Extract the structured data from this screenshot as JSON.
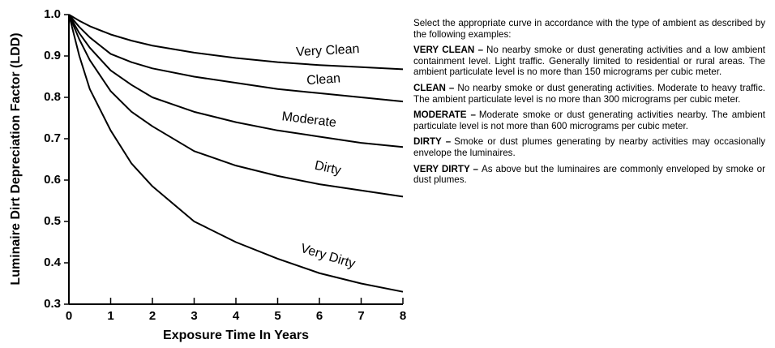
{
  "chart_data": {
    "type": "line",
    "x_label": "Exposure Time In Years",
    "y_label": "Luminaire Dirt Depreciation Factor (LDD)",
    "x": [
      0,
      0.25,
      0.5,
      1,
      1.5,
      2,
      3,
      4,
      5,
      6,
      7,
      8
    ],
    "series": [
      {
        "name": "Very Clean",
        "color": "#000000",
        "values": [
          1.0,
          0.985,
          0.972,
          0.952,
          0.937,
          0.925,
          0.908,
          0.895,
          0.885,
          0.878,
          0.873,
          0.868
        ]
      },
      {
        "name": "Clean",
        "color": "#000000",
        "values": [
          1.0,
          0.97,
          0.945,
          0.905,
          0.885,
          0.87,
          0.85,
          0.835,
          0.82,
          0.81,
          0.8,
          0.79
        ]
      },
      {
        "name": "Moderate",
        "color": "#000000",
        "values": [
          1.0,
          0.955,
          0.92,
          0.865,
          0.83,
          0.8,
          0.765,
          0.74,
          0.72,
          0.705,
          0.69,
          0.68
        ]
      },
      {
        "name": "Dirty",
        "color": "#000000",
        "values": [
          1.0,
          0.94,
          0.89,
          0.815,
          0.765,
          0.73,
          0.67,
          0.635,
          0.61,
          0.59,
          0.575,
          0.56
        ]
      },
      {
        "name": "Very Dirty",
        "color": "#000000",
        "values": [
          1.0,
          0.9,
          0.82,
          0.72,
          0.64,
          0.585,
          0.5,
          0.45,
          0.41,
          0.375,
          0.35,
          0.33
        ]
      }
    ],
    "xlim": [
      0,
      8
    ],
    "xticks": [
      0,
      1,
      2,
      3,
      4,
      5,
      6,
      7,
      8
    ],
    "ylim": [
      0.3,
      1.0
    ],
    "yticks": [
      0.3,
      0.4,
      0.5,
      0.6,
      0.7,
      0.8,
      0.9,
      {
        "value": 1,
        "label": "1.0"
      }
    ],
    "grid": false
  },
  "notes": {
    "intro": "Select the appropriate curve in accordance with the type of ambient as described by the following examples:",
    "items": [
      {
        "term": "VERY CLEAN –",
        "text": "No nearby smoke or dust generating activities and a low ambient containment level. Light traffic.  Generally limited to residential or rural areas. The ambient particulate level is no more than 150 micrograms per cubic meter."
      },
      {
        "term": "CLEAN –",
        "text": "No nearby smoke or dust generating activities.  Moderate to heavy traffic.  The ambient particulate level is no more than 300 micrograms per cubic meter."
      },
      {
        "term": "MODERATE –",
        "text": "Moderate smoke or dust generating activities nearby.  The ambient particulate level is not more than 600 micrograms per cubic meter."
      },
      {
        "term": "DIRTY –",
        "text": "Smoke or dust plumes generating by nearby activities may occasionally envelope the luminaires."
      },
      {
        "term": "VERY DIRTY –",
        "text": "As above but the luminaires are commonly enveloped by smoke or dust plumes."
      }
    ]
  }
}
